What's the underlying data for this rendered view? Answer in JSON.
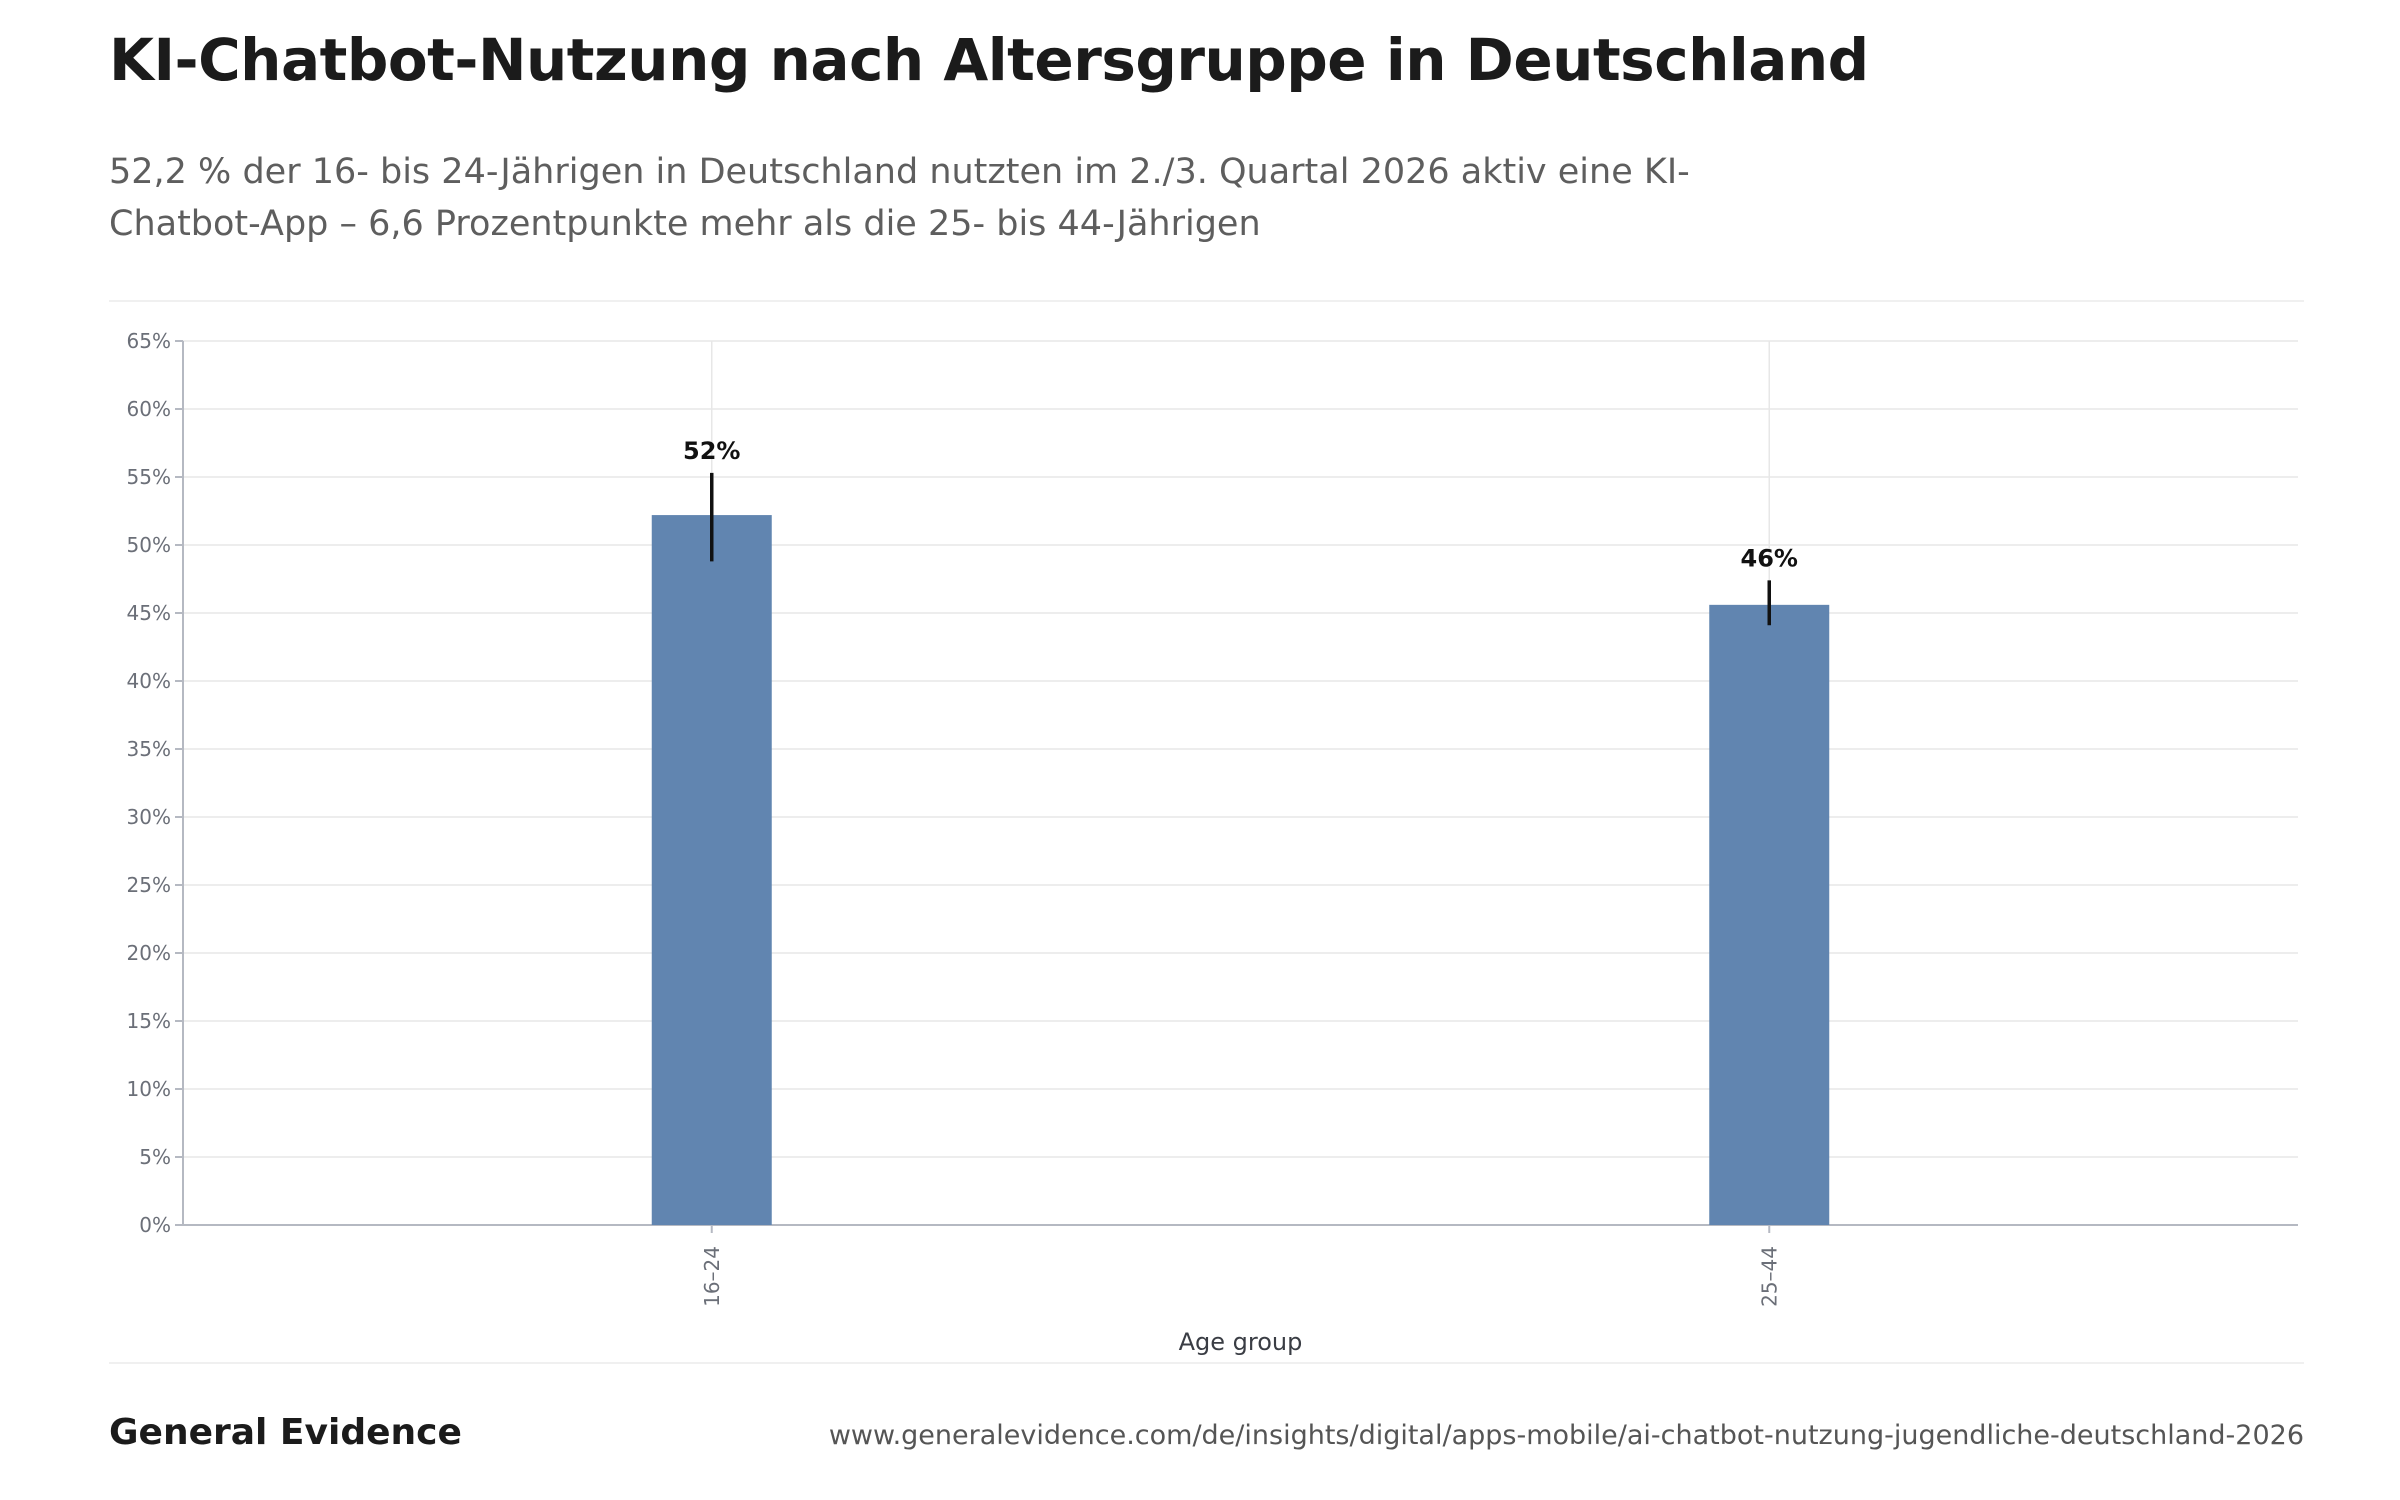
{
  "header": {
    "title": "KI-Chatbot-Nutzung nach Altersgruppe in Deutschland",
    "subtitle": "52,2 % der 16- bis 24-Jährigen in Deutschland nutzten im 2./3. Quartal 2026 aktiv eine KI-Chatbot-App – 6,6 Prozentpunkte mehr als die 25- bis 44-Jährigen"
  },
  "footer": {
    "brand": "General Evidence",
    "source_url": "www.generalevidence.com/de/insights/digital/apps-mobile/ai-chatbot-nutzung-jugendliche-deutschland-2026"
  },
  "colors": {
    "bar": "#6185b0",
    "error_bar": "#111111",
    "grid": "#e7e7e7"
  },
  "chart_data": {
    "type": "bar",
    "title": "KI-Chatbot-Nutzung nach Altersgruppe in Deutschland",
    "xlabel": "Age group",
    "ylabel": "",
    "categories": [
      "16–24",
      "25–44"
    ],
    "values": [
      52.2,
      45.6
    ],
    "data_labels": [
      "52%",
      "46%"
    ],
    "error_bars": [
      {
        "low": 48.8,
        "high": 55.3
      },
      {
        "low": 44.1,
        "high": 47.4
      }
    ],
    "ylim": [
      0,
      65
    ],
    "yticks": [
      0,
      5,
      10,
      15,
      20,
      25,
      30,
      35,
      40,
      45,
      50,
      55,
      60,
      65
    ],
    "ytick_labels": [
      "0%",
      "5%",
      "10%",
      "15%",
      "20%",
      "25%",
      "30%",
      "35%",
      "40%",
      "45%",
      "50%",
      "55%",
      "60%",
      "65%"
    ],
    "grid": true,
    "legend": "none"
  }
}
